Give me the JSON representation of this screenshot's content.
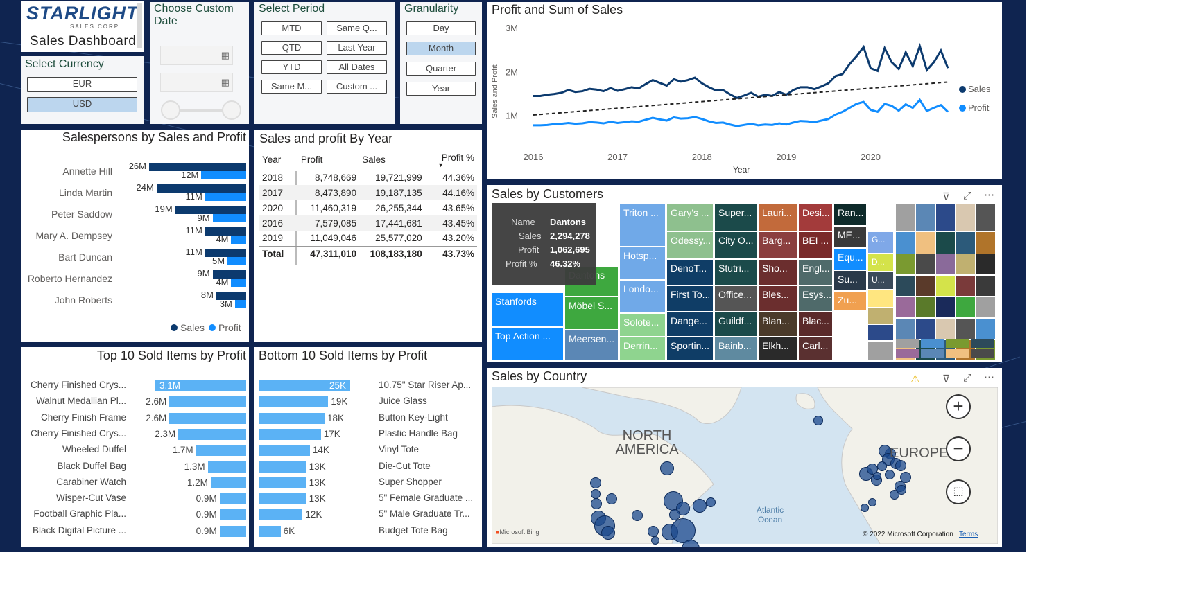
{
  "logo": {
    "brand": "STARLIGHT",
    "sub": "SALES CORP",
    "dashboard": "Sales Dashboard"
  },
  "currency": {
    "title": "Select Currency",
    "options": [
      "EUR",
      "USD"
    ],
    "selected": "USD"
  },
  "customDate": {
    "title": "Choose Custom Date"
  },
  "period": {
    "title": "Select Period",
    "options": [
      "MTD",
      "Same Q...",
      "QTD",
      "Last Year",
      "YTD",
      "All Dates",
      "Same M...",
      "Custom ..."
    ]
  },
  "granularity": {
    "title": "Granularity",
    "options": [
      "Day",
      "Month",
      "Quarter",
      "Year"
    ],
    "selected": "Month"
  },
  "salespersons": {
    "title": "Salespersons by Sales and Profit",
    "legend_sales": "Sales",
    "legend_profit": "Profit",
    "rows": [
      {
        "name": "Annette Hill",
        "sales_label": "26M",
        "profit_label": "12M",
        "sales": 26,
        "profit": 12
      },
      {
        "name": "Linda Martin",
        "sales_label": "24M",
        "profit_label": "11M",
        "sales": 24,
        "profit": 11
      },
      {
        "name": "Peter Saddow",
        "sales_label": "19M",
        "profit_label": "9M",
        "sales": 19,
        "profit": 9
      },
      {
        "name": "Mary A. Dempsey",
        "sales_label": "11M",
        "profit_label": "4M",
        "sales": 11,
        "profit": 4
      },
      {
        "name": "Bart Duncan",
        "sales_label": "11M",
        "profit_label": "5M",
        "sales": 11,
        "profit": 5
      },
      {
        "name": "Roberto Hernandez",
        "sales_label": "9M",
        "profit_label": "4M",
        "sales": 9,
        "profit": 4
      },
      {
        "name": "John Roberts",
        "sales_label": "8M",
        "profit_label": "3M",
        "sales": 8,
        "profit": 3
      }
    ]
  },
  "yearTable": {
    "title": "Sales and profit By Year",
    "headers": [
      "Year",
      "Profit",
      "Sales",
      "Profit %"
    ],
    "rows": [
      [
        "2018",
        "8,748,669",
        "19,721,999",
        "44.36%"
      ],
      [
        "2017",
        "8,473,890",
        "19,187,135",
        "44.16%"
      ],
      [
        "2020",
        "11,460,319",
        "26,255,344",
        "43.65%"
      ],
      [
        "2016",
        "7,579,085",
        "17,441,681",
        "43.45%"
      ],
      [
        "2019",
        "11,049,046",
        "25,577,020",
        "43.20%"
      ]
    ],
    "total": [
      "Total",
      "47,311,010",
      "108,183,180",
      "43.73%"
    ]
  },
  "lineChart": {
    "title": "Profit and Sum of Sales",
    "ylabel": "Sales and Profit",
    "xlabel": "Year",
    "yticks": [
      "3M",
      "2M",
      "1M"
    ],
    "xticks": [
      "2016",
      "2017",
      "2018",
      "2019",
      "2020"
    ],
    "legend_sales": "Sales",
    "legend_profit": "Profit",
    "color_sales": "#0c3a6e",
    "color_profit": "#118dff"
  },
  "customers": {
    "title": "Sales by Customers",
    "tooltip": {
      "k1": "Name",
      "v1": "Dantons",
      "k2": "Sales",
      "v2": "2,294,278",
      "k3": "Profit",
      "v3": "1,062,695",
      "k4": "Profit %",
      "v4": "46.32%"
    },
    "tiles": [
      "Stanfords",
      "Top Action ...",
      "Dantons",
      "Möbel S...",
      "Meersen...",
      "Triton ...",
      "Hotsp...",
      "Londo...",
      "Solote...",
      "Derrin...",
      "Gary's ...",
      "Odessy...",
      "DenoT...",
      "First To...",
      "Dange...",
      "Sportin...",
      "Super...",
      "City O...",
      "Stutri...",
      "Office...",
      "Guildf...",
      "Bainb...",
      "Lauri...",
      "Barg...",
      "Sho...",
      "Bles...",
      "Blan...",
      "Elkh...",
      "Desi...",
      "BEI ...",
      "Engl...",
      "Esys...",
      "Blac...",
      "Carl...",
      "Ran...",
      "ME...",
      "Equ...",
      "Su...",
      "Zu...",
      "G...",
      "D...",
      "U..."
    ]
  },
  "country": {
    "title": "Sales by Country",
    "label_na": "NORTH AMERICA",
    "label_eu": "EUROPE",
    "label_ocean": "Atlantic Ocean",
    "copyright": "© 2022 Microsoft Corporation",
    "terms": "Terms",
    "bing": "Microsoft Bing"
  },
  "top10": {
    "title": "Top 10 Sold Items by Profit",
    "items": [
      {
        "name": "Cherry Finished Crys...",
        "label": "3.1M",
        "value": 3.1
      },
      {
        "name": "Walnut Medallian Pl...",
        "label": "2.6M",
        "value": 2.6
      },
      {
        "name": "Cherry Finish Frame",
        "label": "2.6M",
        "value": 2.6
      },
      {
        "name": "Cherry Finished Crys...",
        "label": "2.3M",
        "value": 2.3
      },
      {
        "name": "Wheeled Duffel",
        "label": "1.7M",
        "value": 1.7
      },
      {
        "name": "Black Duffel Bag",
        "label": "1.3M",
        "value": 1.3
      },
      {
        "name": "Carabiner Watch",
        "label": "1.2M",
        "value": 1.2
      },
      {
        "name": "Wisper-Cut Vase",
        "label": "0.9M",
        "value": 0.9
      },
      {
        "name": "Football Graphic Pla...",
        "label": "0.9M",
        "value": 0.9
      },
      {
        "name": "Black Digital Picture ...",
        "label": "0.9M",
        "value": 0.9
      }
    ]
  },
  "bottom10": {
    "title": "Bottom 10 Sold Items by Profit",
    "items": [
      {
        "name": "10.75\" Star Riser Ap...",
        "label": "25K",
        "value": 25
      },
      {
        "name": "Juice Glass",
        "label": "19K",
        "value": 19
      },
      {
        "name": "Button Key-Light",
        "label": "18K",
        "value": 18
      },
      {
        "name": "Plastic Handle Bag",
        "label": "17K",
        "value": 17
      },
      {
        "name": "Vinyl Tote",
        "label": "14K",
        "value": 14
      },
      {
        "name": "Die-Cut Tote",
        "label": "13K",
        "value": 13
      },
      {
        "name": "Super Shopper",
        "label": "13K",
        "value": 13
      },
      {
        "name": "5\" Female Graduate ...",
        "label": "13K",
        "value": 13
      },
      {
        "name": "5\" Male Graduate Tr...",
        "label": "12K",
        "value": 12
      },
      {
        "name": "Budget Tote Bag",
        "label": "6K",
        "value": 6
      }
    ]
  },
  "chart_data": [
    {
      "type": "bar",
      "title": "Salespersons by Sales and Profit",
      "categories": [
        "Annette Hill",
        "Linda Martin",
        "Peter Saddow",
        "Mary A. Dempsey",
        "Bart Duncan",
        "Roberto Hernandez",
        "John Roberts"
      ],
      "series": [
        {
          "name": "Sales",
          "values": [
            26,
            24,
            19,
            11,
            11,
            9,
            8
          ]
        },
        {
          "name": "Profit",
          "values": [
            12,
            11,
            9,
            4,
            5,
            4,
            3
          ]
        }
      ]
    },
    {
      "type": "line",
      "title": "Profit and Sum of Sales",
      "xlabel": "Year",
      "ylabel": "Sales and Profit",
      "ylim": [
        0,
        3200000
      ],
      "x": [
        "2016-01",
        "2016-02",
        "2016-03",
        "2016-04",
        "2016-05",
        "2016-06",
        "2016-07",
        "2016-08",
        "2016-09",
        "2016-10",
        "2016-11",
        "2016-12",
        "2017-01",
        "2017-02",
        "2017-03",
        "2017-04",
        "2017-05",
        "2017-06",
        "2017-07",
        "2017-08",
        "2017-09",
        "2017-10",
        "2017-11",
        "2017-12",
        "2018-01",
        "2018-02",
        "2018-03",
        "2018-04",
        "2018-05",
        "2018-06",
        "2018-07",
        "2018-08",
        "2018-09",
        "2018-10",
        "2018-11",
        "2018-12",
        "2019-01",
        "2019-02",
        "2019-03",
        "2019-04",
        "2019-05",
        "2019-06",
        "2019-07",
        "2019-08",
        "2019-09",
        "2019-10",
        "2019-11",
        "2019-12",
        "2020-01",
        "2020-02",
        "2020-03",
        "2020-04",
        "2020-05",
        "2020-06",
        "2020-07",
        "2020-08",
        "2020-09",
        "2020-10",
        "2020-11",
        "2020-12"
      ],
      "series": [
        {
          "name": "Sales",
          "values": [
            1300000,
            1300000,
            1330000,
            1350000,
            1380000,
            1450000,
            1400000,
            1420000,
            1480000,
            1460000,
            1420000,
            1500000,
            1430000,
            1470000,
            1520000,
            1490000,
            1600000,
            1700000,
            1630000,
            1560000,
            1720000,
            1660000,
            1700000,
            1760000,
            1620000,
            1520000,
            1440000,
            1450000,
            1340000,
            1250000,
            1310000,
            1380000,
            1280000,
            1330000,
            1300000,
            1400000,
            1330000,
            1450000,
            1520000,
            1520000,
            1470000,
            1540000,
            1620000,
            1800000,
            1850000,
            2100000,
            2300000,
            2530000,
            2000000,
            1930000,
            2500000,
            2150000,
            1980000,
            2400000,
            2050000,
            2550000,
            1950000,
            2150000,
            2440000,
            2000000
          ]
        },
        {
          "name": "Profit",
          "values": [
            560000,
            560000,
            570000,
            590000,
            600000,
            620000,
            600000,
            610000,
            640000,
            630000,
            610000,
            650000,
            620000,
            640000,
            660000,
            650000,
            700000,
            750000,
            710000,
            680000,
            760000,
            730000,
            740000,
            770000,
            720000,
            660000,
            620000,
            630000,
            580000,
            540000,
            570000,
            600000,
            560000,
            580000,
            570000,
            610000,
            580000,
            630000,
            670000,
            660000,
            640000,
            680000,
            720000,
            830000,
            900000,
            1000000,
            1100000,
            1150000,
            950000,
            900000,
            1100000,
            1050000,
            930000,
            1090000,
            1000000,
            1200000,
            920000,
            1000000,
            1070000,
            900000
          ]
        }
      ]
    },
    {
      "type": "bar",
      "title": "Top 10 Sold Items by Profit",
      "categories": [
        "Cherry Finished Crys...",
        "Walnut Medallian Pl...",
        "Cherry Finish Frame",
        "Cherry Finished Crys...",
        "Wheeled Duffel",
        "Black Duffel Bag",
        "Carabiner Watch",
        "Wisper-Cut Vase",
        "Football Graphic Pla...",
        "Black Digital Picture ..."
      ],
      "values": [
        3.1,
        2.6,
        2.6,
        2.3,
        1.7,
        1.3,
        1.2,
        0.9,
        0.9,
        0.9
      ]
    },
    {
      "type": "bar",
      "title": "Bottom 10 Sold Items by Profit",
      "categories": [
        "10.75\" Star Riser Ap...",
        "Juice Glass",
        "Button Key-Light",
        "Plastic Handle Bag",
        "Vinyl Tote",
        "Die-Cut Tote",
        "Super Shopper",
        "5\" Female Graduate ...",
        "5\" Male Graduate Tr...",
        "Budget Tote Bag"
      ],
      "values": [
        25,
        19,
        18,
        17,
        14,
        13,
        13,
        13,
        12,
        6
      ]
    }
  ]
}
